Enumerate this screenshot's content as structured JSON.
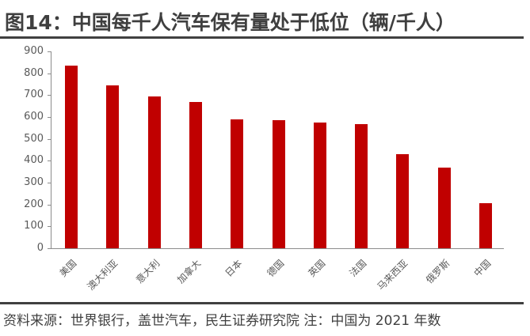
{
  "header": {
    "title": "图14：中国每千人汽车保有量处于低位（辆/千人）"
  },
  "footer": {
    "source": "资料来源：世界银行，盖世汽车，民生证券研究院    注：中国为 2021 年数"
  },
  "colors": {
    "bar": "#c00000",
    "axis": "#8c8c8c",
    "text": "#595959",
    "rule": "#404040"
  },
  "chart_data": {
    "type": "bar",
    "title": "中国每千人汽车保有量处于低位（辆/千人）",
    "xlabel": "",
    "ylabel": "辆/千人",
    "ylim": [
      0,
      900
    ],
    "yticks": [
      0,
      100,
      200,
      300,
      400,
      500,
      600,
      700,
      800,
      900
    ],
    "grid": false,
    "legend": null,
    "categories": [
      "美国",
      "澳大利亚",
      "意大利",
      "加拿大",
      "日本",
      "德国",
      "英国",
      "法国",
      "马来西亚",
      "俄罗斯",
      "中国"
    ],
    "values": [
      835,
      745,
      694,
      669,
      589,
      585,
      576,
      566,
      430,
      369,
      206
    ]
  }
}
